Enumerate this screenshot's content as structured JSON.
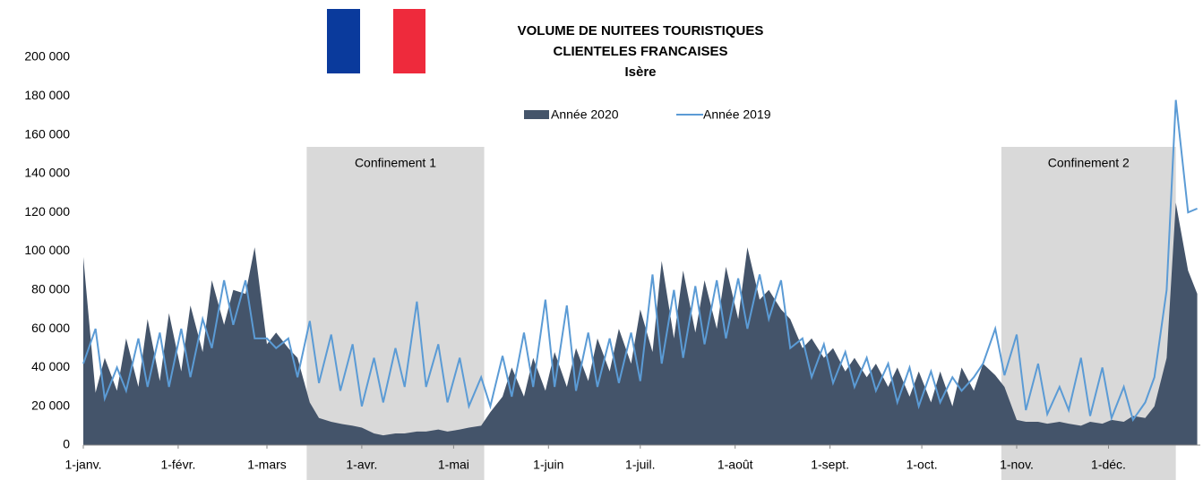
{
  "chart_data": {
    "type": "area_line",
    "title": [
      "VOLUME DE NUITEES TOURISTIQUES",
      "CLIENTELES FRANCAISES",
      "Isère"
    ],
    "x": [
      0,
      4,
      7,
      11,
      14,
      18,
      21,
      25,
      28,
      32,
      35,
      39,
      42,
      46,
      49,
      53,
      56,
      60,
      63,
      67,
      70,
      74,
      77,
      81,
      84,
      88,
      91,
      95,
      98,
      102,
      105,
      109,
      112,
      116,
      119,
      123,
      126,
      130,
      133,
      137,
      140,
      144,
      147,
      151,
      154,
      158,
      161,
      165,
      168,
      172,
      175,
      179,
      182,
      186,
      189,
      193,
      196,
      200,
      203,
      207,
      210,
      214,
      217,
      221,
      224,
      228,
      231,
      235,
      238,
      242,
      245,
      249,
      252,
      256,
      259,
      263,
      266,
      270,
      273,
      277,
      280,
      284,
      287,
      291,
      294,
      298,
      301,
      305,
      308,
      312,
      315,
      319,
      322,
      326,
      329,
      333,
      336,
      340,
      343,
      347,
      350,
      354,
      357,
      361,
      364
    ],
    "series": [
      {
        "name": "Année 2020",
        "color": "#44546a",
        "kind": "area",
        "values": [
          97000,
          27000,
          45000,
          28000,
          55000,
          30000,
          65000,
          33000,
          68000,
          38000,
          72000,
          48000,
          85000,
          62000,
          80000,
          78000,
          102000,
          52000,
          58000,
          50000,
          45000,
          22000,
          14000,
          12000,
          11000,
          10000,
          9000,
          6000,
          5000,
          6000,
          6000,
          7000,
          7000,
          8000,
          7000,
          8000,
          9000,
          10000,
          17000,
          25000,
          40000,
          25000,
          45000,
          28000,
          48000,
          30000,
          50000,
          33000,
          55000,
          38000,
          60000,
          42000,
          70000,
          48000,
          95000,
          55000,
          90000,
          58000,
          85000,
          60000,
          92000,
          65000,
          102000,
          75000,
          80000,
          70000,
          65000,
          50000,
          55000,
          45000,
          50000,
          38000,
          45000,
          35000,
          42000,
          30000,
          40000,
          25000,
          38000,
          22000,
          38000,
          20000,
          40000,
          28000,
          42000,
          36000,
          30000,
          13000,
          12000,
          12000,
          11000,
          12000,
          11000,
          10000,
          12000,
          11000,
          13000,
          12000,
          15000,
          14000,
          20000,
          45000,
          125000,
          90000,
          78000
        ]
      },
      {
        "name": "Année 2019",
        "color": "#5b9bd5",
        "kind": "line",
        "values": [
          42000,
          60000,
          24000,
          40000,
          28000,
          55000,
          30000,
          58000,
          30000,
          60000,
          35000,
          65000,
          50000,
          85000,
          62000,
          85000,
          55000,
          55000,
          50000,
          55000,
          35000,
          64000,
          32000,
          57000,
          28000,
          52000,
          20000,
          45000,
          22000,
          50000,
          30000,
          74000,
          30000,
          52000,
          22000,
          45000,
          20000,
          35000,
          20000,
          46000,
          25000,
          58000,
          30000,
          75000,
          30000,
          72000,
          28000,
          58000,
          30000,
          55000,
          32000,
          58000,
          33000,
          88000,
          42000,
          80000,
          45000,
          82000,
          52000,
          85000,
          55000,
          86000,
          60000,
          88000,
          65000,
          85000,
          50000,
          55000,
          35000,
          52000,
          32000,
          48000,
          30000,
          45000,
          28000,
          42000,
          22000,
          40000,
          20000,
          38000,
          22000,
          35000,
          28000,
          35000,
          42000,
          60000,
          36000,
          57000,
          18000,
          42000,
          16000,
          30000,
          18000,
          45000,
          15000,
          40000,
          14000,
          30000,
          13000,
          22000,
          35000,
          80000,
          178000,
          120000,
          122000
        ]
      }
    ],
    "xlim": [
      0,
      365
    ],
    "xticks": [
      {
        "value": 0,
        "label": "1-janv."
      },
      {
        "value": 31,
        "label": "1-févr."
      },
      {
        "value": 60,
        "label": "1-mars"
      },
      {
        "value": 91,
        "label": "1-avr."
      },
      {
        "value": 121,
        "label": "1-mai"
      },
      {
        "value": 152,
        "label": "1-juin"
      },
      {
        "value": 182,
        "label": "1-juil."
      },
      {
        "value": 213,
        "label": "1-août"
      },
      {
        "value": 244,
        "label": "1-sept."
      },
      {
        "value": 274,
        "label": "1-oct."
      },
      {
        "value": 305,
        "label": "1-nov."
      },
      {
        "value": 335,
        "label": "1-déc."
      }
    ],
    "ylim": [
      0,
      200000
    ],
    "yticks": [
      0,
      {
        "value": 20000,
        "label": "20 000"
      },
      {
        "value": 40000,
        "label": "40 000"
      },
      {
        "value": 60000,
        "label": "60 000"
      },
      {
        "value": 80000,
        "label": "80 000"
      },
      {
        "value": 100000,
        "label": "100 000"
      },
      {
        "value": 120000,
        "label": "120 000"
      },
      {
        "value": 140000,
        "label": "140 000"
      },
      {
        "value": 160000,
        "label": "160 000"
      },
      {
        "value": 180000,
        "label": "180 000"
      },
      {
        "value": 200000,
        "label": "200 000"
      }
    ],
    "annotations": [
      {
        "text": "Confinement 1",
        "x0": 73,
        "x1": 131
      },
      {
        "text": "Confinement 2",
        "x0": 300,
        "x1": 357
      }
    ]
  }
}
